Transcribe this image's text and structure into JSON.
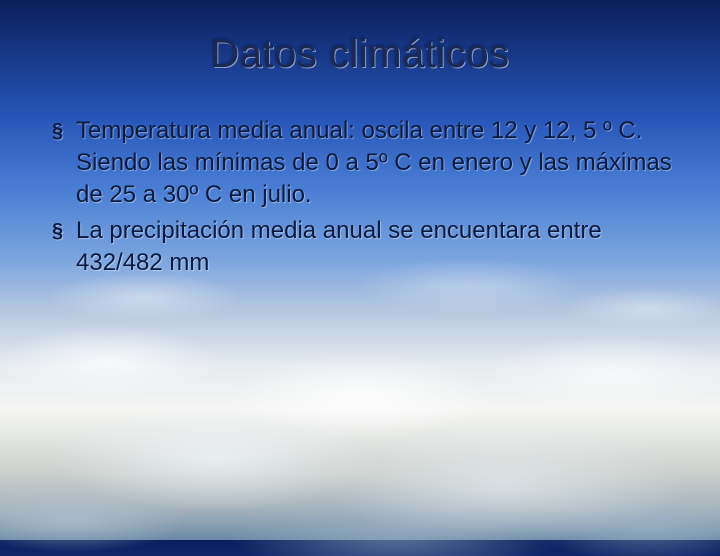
{
  "slide": {
    "title": "Datos climáticos",
    "bullets": [
      {
        "text": "Temperatura media anual: oscila entre 12 y 12, 5 º C. Siendo las mínimas de 0 a 5º C en enero y las máximas de 25 a 30º C en julio."
      },
      {
        "text": "La precipitación media anual se encuentara entre 432/482 mm"
      }
    ],
    "bullet_marker": "§"
  },
  "styling": {
    "title_color": "#1a2a55",
    "text_color": "#0a1a40",
    "title_fontsize": 40,
    "body_fontsize": 24,
    "bullet_marker_color": "#0a1a40",
    "background_gradient_stops": [
      "#0a1f5c",
      "#1a3d8f",
      "#2856b8",
      "#4a7ed4",
      "#7ba5df",
      "#b8c9e0",
      "#e8ecf0",
      "#f5f6f4",
      "#e0e3e0",
      "#c8cecb",
      "#a8b5bc",
      "#6a8aa8"
    ]
  }
}
